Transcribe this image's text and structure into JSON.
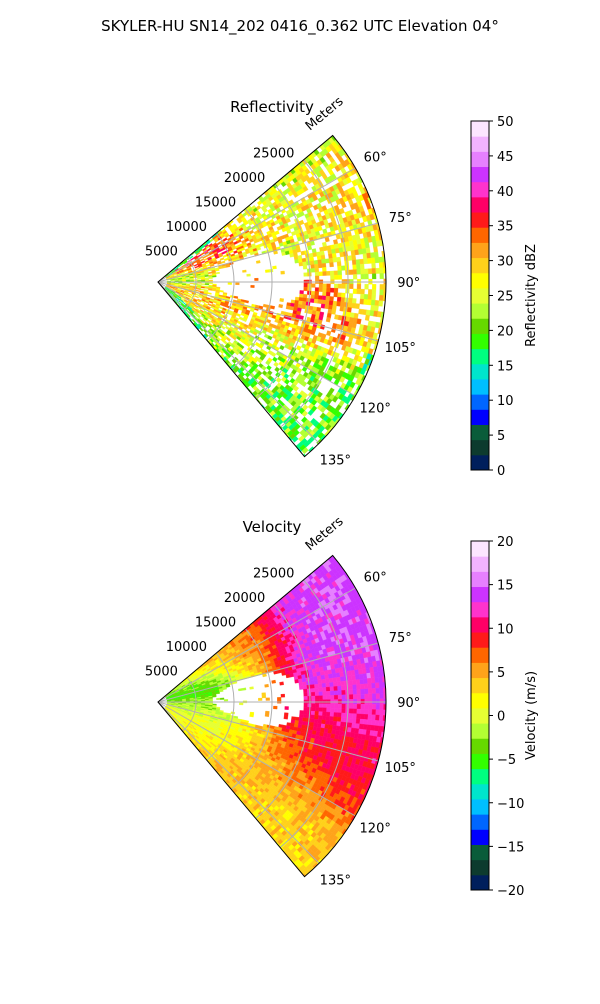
{
  "figure": {
    "title": "SKYLER-HU  SN14_202  0416_0.362 UTC Elevation 04°"
  },
  "chart_data": [
    {
      "type": "heatmap",
      "projection": "polar sector",
      "title": "Reflectivity",
      "range_label": "Meters",
      "range_ticks": [
        "5000",
        "10000",
        "15000",
        "20000",
        "25000"
      ],
      "range_values": [
        5000,
        10000,
        15000,
        20000,
        25000
      ],
      "range_max": 30000,
      "azimuth_ticks": [
        "60°",
        "75°",
        "90°",
        "105°",
        "120°",
        "135°"
      ],
      "azimuth_values": [
        60,
        75,
        90,
        105,
        120,
        135
      ],
      "azimuth_range": [
        50,
        140
      ],
      "grid": true,
      "colorbar": {
        "label": "Reflectivity dBZ",
        "range": [
          0,
          50
        ],
        "ticks": [
          "0",
          "5",
          "10",
          "15",
          "20",
          "25",
          "30",
          "35",
          "40",
          "45",
          "50"
        ],
        "tick_values": [
          0,
          5,
          10,
          15,
          20,
          25,
          30,
          35,
          40,
          45,
          50
        ],
        "colors": [
          "#001f5c",
          "#0d3b2e",
          "#0a5c3a",
          "#0000ff",
          "#0066ff",
          "#00bfff",
          "#00e5cc",
          "#00ff80",
          "#33ff00",
          "#66d900",
          "#b3ff33",
          "#e6ff33",
          "#ffff00",
          "#ffd11a",
          "#ffa31a",
          "#ff6600",
          "#ff1a1a",
          "#ff0066",
          "#ff33cc",
          "#cc33ff",
          "#e680ff",
          "#f2b3ff",
          "#fce6ff"
        ]
      },
      "echoes": [
        {
          "az": 58,
          "r": 22000,
          "value": 24
        },
        {
          "az": 65,
          "r": 20000,
          "value": 28
        },
        {
          "az": 70,
          "r": 25000,
          "value": 30
        },
        {
          "az": 78,
          "r": 15000,
          "value": 22
        },
        {
          "az": 85,
          "r": 27000,
          "value": 26
        },
        {
          "az": 96,
          "r": 14000,
          "value": 34
        },
        {
          "az": 100,
          "r": 17000,
          "value": 38
        },
        {
          "az": 104,
          "r": 9000,
          "value": 30
        },
        {
          "az": 110,
          "r": 13000,
          "value": 28
        },
        {
          "az": 118,
          "r": 16000,
          "value": 24
        },
        {
          "az": 126,
          "r": 20000,
          "value": 20
        },
        {
          "az": 74,
          "r": 9000,
          "value": 38
        },
        {
          "az": 82,
          "r": 6000,
          "value": 18
        }
      ]
    },
    {
      "type": "heatmap",
      "projection": "polar sector",
      "title": "Velocity",
      "range_label": "Meters",
      "range_ticks": [
        "5000",
        "10000",
        "15000",
        "20000",
        "25000"
      ],
      "range_values": [
        5000,
        10000,
        15000,
        20000,
        25000
      ],
      "range_max": 30000,
      "azimuth_ticks": [
        "60°",
        "75°",
        "90°",
        "105°",
        "120°",
        "135°"
      ],
      "azimuth_values": [
        60,
        75,
        90,
        105,
        120,
        135
      ],
      "azimuth_range": [
        50,
        140
      ],
      "grid": true,
      "colorbar": {
        "label": "Velocity (m/s)",
        "range": [
          -20,
          20
        ],
        "ticks": [
          "−20",
          "−15",
          "−10",
          "−5",
          "0",
          "5",
          "10",
          "15",
          "20"
        ],
        "tick_values": [
          -20,
          -15,
          -10,
          -5,
          0,
          5,
          10,
          15,
          20
        ],
        "colors": [
          "#001f5c",
          "#0d3b2e",
          "#0a5c3a",
          "#0000ff",
          "#0066ff",
          "#00bfff",
          "#00e5cc",
          "#00ff80",
          "#33ff00",
          "#66d900",
          "#b3ff33",
          "#e6ff33",
          "#ffff00",
          "#ffd11a",
          "#ffa31a",
          "#ff6600",
          "#ff1a1a",
          "#ff0066",
          "#ff33cc",
          "#cc33ff",
          "#e680ff",
          "#f2b3ff",
          "#fce6ff"
        ]
      },
      "echoes": [
        {
          "az": 60,
          "r": 25000,
          "value": 14
        },
        {
          "az": 68,
          "r": 22000,
          "value": 15
        },
        {
          "az": 78,
          "r": 26000,
          "value": 14
        },
        {
          "az": 88,
          "r": 23000,
          "value": 12
        },
        {
          "az": 100,
          "r": 20000,
          "value": 9
        },
        {
          "az": 110,
          "r": 24000,
          "value": 10
        },
        {
          "az": 120,
          "r": 18000,
          "value": 5
        },
        {
          "az": 128,
          "r": 22000,
          "value": 3
        },
        {
          "az": 110,
          "r": 10000,
          "value": 1
        },
        {
          "az": 95,
          "r": 6000,
          "value": -2
        },
        {
          "az": 75,
          "r": 7000,
          "value": -5
        },
        {
          "az": 65,
          "r": 14000,
          "value": 5
        }
      ]
    }
  ]
}
